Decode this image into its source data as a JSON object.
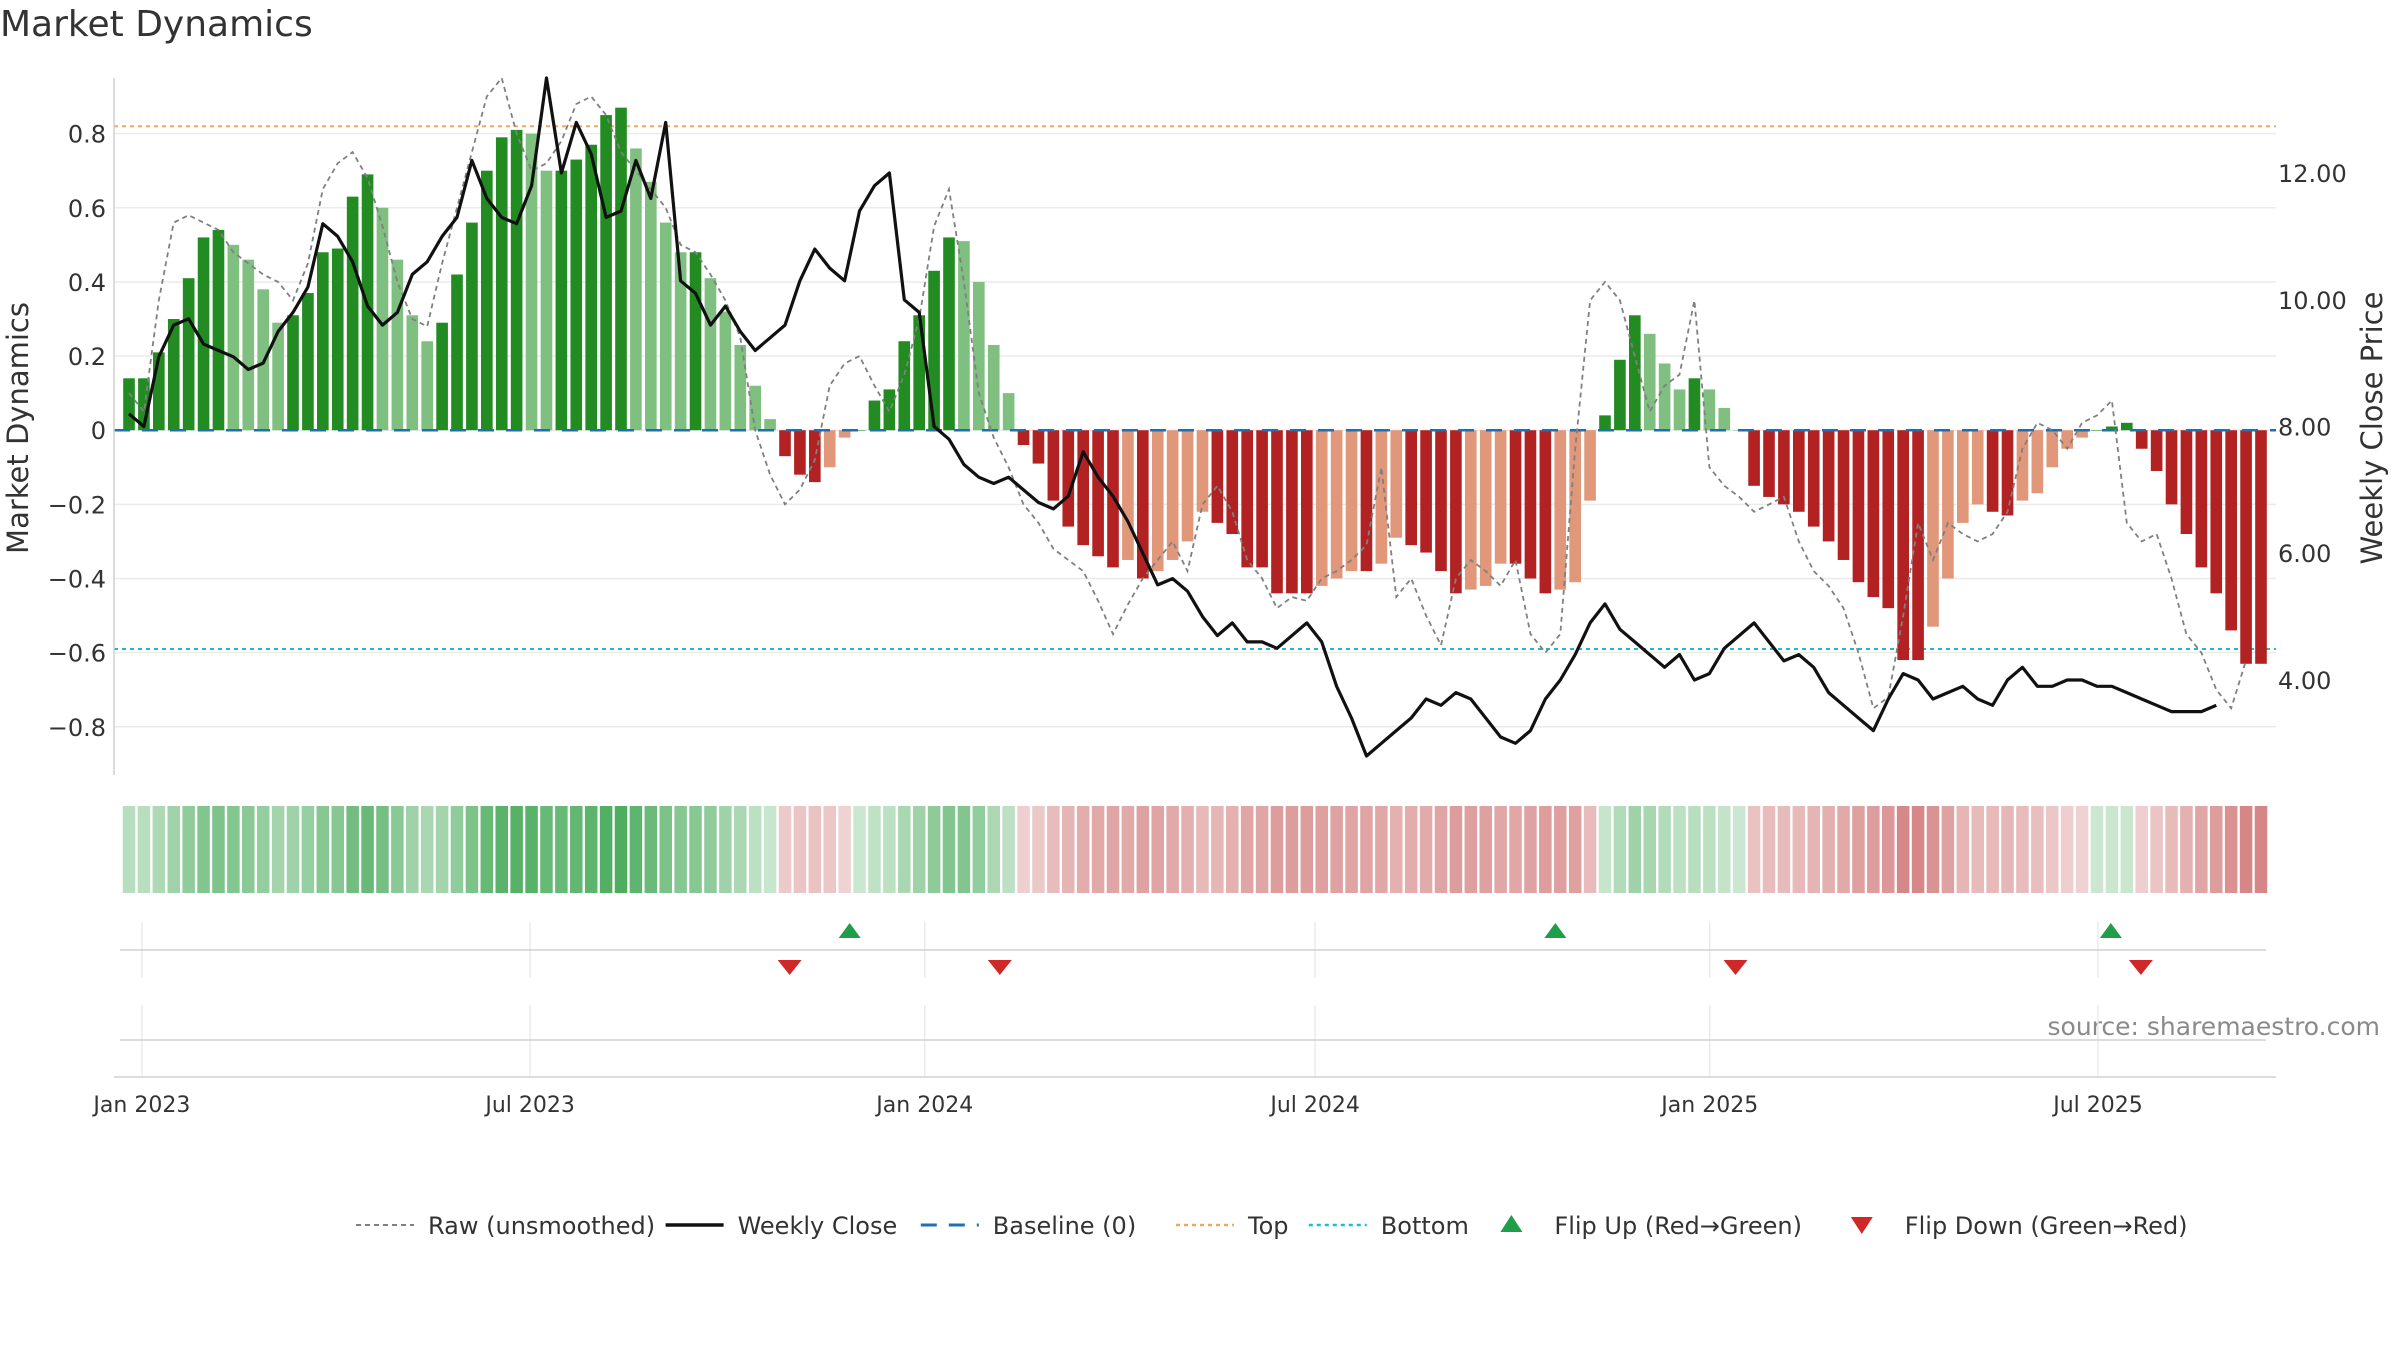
{
  "chart_data": {
    "type": "bar",
    "title": "Market Dynamics",
    "ylabel": "Market Dynamics",
    "y2label": "Weekly Close Price",
    "source": "source: sharemaestro.com",
    "ylim": [
      -0.93,
      0.95
    ],
    "y2lim": [
      2.5,
      13.5
    ],
    "yticks": [
      "0.8",
      "0.6",
      "0.4",
      "0.2",
      "0",
      "−0.2",
      "−0.4",
      "−0.6",
      "−0.8"
    ],
    "ytick_values": [
      0.8,
      0.6,
      0.4,
      0.2,
      0,
      -0.2,
      -0.4,
      -0.6,
      -0.8
    ],
    "y2ticks": [
      "12.00",
      "10.00",
      "8.00",
      "6.00",
      "4.00"
    ],
    "y2tick_values": [
      12,
      10,
      8,
      6,
      4
    ],
    "x_start": "2022-12-26",
    "x_end": "2025-09-15",
    "x_range": [
      "2022-12-19",
      "2025-09-22"
    ],
    "xticks": [
      {
        "label": "Jan 2023",
        "date": "2023-01-01"
      },
      {
        "label": "Jul 2023",
        "date": "2023-07-01"
      },
      {
        "label": "Jan 2024",
        "date": "2024-01-01"
      },
      {
        "label": "Jul 2024",
        "date": "2024-07-01"
      },
      {
        "label": "Jan 2025",
        "date": "2025-01-01"
      },
      {
        "label": "Jul 2025",
        "date": "2025-07-01"
      }
    ],
    "reference_lines": {
      "top": 0.82,
      "bottom": -0.59,
      "baseline": 0
    },
    "grid": true,
    "legend_position": "bottom",
    "legend": [
      {
        "label": "Raw (unsmoothed)",
        "kind": "raw"
      },
      {
        "label": "Weekly Close",
        "kind": "close"
      },
      {
        "label": "Baseline (0)",
        "kind": "baseline"
      },
      {
        "label": "Top",
        "kind": "top"
      },
      {
        "label": "Bottom",
        "kind": "bottom"
      },
      {
        "label": "Flip Up (Red→Green)",
        "kind": "flipup"
      },
      {
        "label": "Flip Down (Green→Red)",
        "kind": "flipdown"
      }
    ],
    "series": [
      {
        "name": "Market Dynamics",
        "kind": "bars",
        "values": [
          0.14,
          0.14,
          0.21,
          0.3,
          0.41,
          0.52,
          0.54,
          0.5,
          0.46,
          0.38,
          0.29,
          0.31,
          0.37,
          0.48,
          0.49,
          0.63,
          0.69,
          0.6,
          0.46,
          0.31,
          0.24,
          0.29,
          0.42,
          0.56,
          0.7,
          0.79,
          0.81,
          0.8,
          0.7,
          0.7,
          0.73,
          0.77,
          0.85,
          0.87,
          0.76,
          0.67,
          0.56,
          0.48,
          0.48,
          0.41,
          0.32,
          0.23,
          0.12,
          0.03,
          -0.07,
          -0.12,
          -0.14,
          -0.1,
          -0.02,
          0.0,
          0.08,
          0.11,
          0.24,
          0.31,
          0.43,
          0.52,
          0.51,
          0.4,
          0.23,
          0.1,
          -0.04,
          -0.09,
          -0.19,
          -0.26,
          -0.31,
          -0.34,
          -0.37,
          -0.35,
          -0.4,
          -0.38,
          -0.35,
          -0.3,
          -0.22,
          -0.25,
          -0.28,
          -0.37,
          -0.37,
          -0.44,
          -0.44,
          -0.44,
          -0.42,
          -0.4,
          -0.38,
          -0.38,
          -0.36,
          -0.29,
          -0.31,
          -0.33,
          -0.38,
          -0.44,
          -0.43,
          -0.42,
          -0.36,
          -0.36,
          -0.4,
          -0.44,
          -0.43,
          -0.41,
          -0.19,
          0.04,
          0.19,
          0.31,
          0.26,
          0.18,
          0.11,
          0.14,
          0.11,
          0.06,
          0.0,
          -0.15,
          -0.18,
          -0.2,
          -0.22,
          -0.26,
          -0.3,
          -0.35,
          -0.41,
          -0.45,
          -0.48,
          -0.62,
          -0.62,
          -0.53,
          -0.4,
          -0.25,
          -0.2,
          -0.22,
          -0.23,
          -0.19,
          -0.17,
          -0.1,
          -0.05,
          -0.02,
          0.0,
          0.01,
          0.02,
          -0.05,
          -0.11,
          -0.2,
          -0.28,
          -0.37,
          -0.44,
          -0.54,
          -0.63,
          -0.63
        ]
      },
      {
        "name": "Weekly Close",
        "kind": "price",
        "values": [
          8.2,
          8.0,
          9.1,
          9.6,
          9.7,
          9.3,
          9.2,
          9.1,
          8.9,
          9.0,
          9.5,
          9.8,
          10.2,
          11.2,
          11.0,
          10.6,
          9.9,
          9.6,
          9.8,
          10.4,
          10.6,
          11.0,
          11.3,
          12.2,
          11.6,
          11.3,
          11.2,
          11.8,
          13.5,
          12.0,
          12.8,
          12.3,
          11.3,
          11.4,
          12.2,
          11.6,
          12.8,
          10.3,
          10.1,
          9.6,
          9.9,
          9.5,
          9.2,
          9.4,
          9.6,
          10.3,
          10.8,
          10.5,
          10.3,
          11.4,
          11.8,
          12.0,
          10.0,
          9.8,
          8.0,
          7.8,
          7.4,
          7.2,
          7.1,
          7.2,
          7.0,
          6.8,
          6.7,
          6.9,
          7.6,
          7.2,
          6.9,
          6.5,
          6.0,
          5.5,
          5.6,
          5.4,
          5.0,
          4.7,
          4.9,
          4.6,
          4.6,
          4.5,
          4.7,
          4.9,
          4.6,
          3.9,
          3.4,
          2.8,
          3.0,
          3.2,
          3.4,
          3.7,
          3.6,
          3.8,
          3.7,
          3.4,
          3.1,
          3.0,
          3.2,
          3.7,
          4.0,
          4.4,
          4.9,
          5.2,
          4.8,
          4.6,
          4.4,
          4.2,
          4.4,
          4.0,
          4.1,
          4.5,
          4.7,
          4.9,
          4.6,
          4.3,
          4.4,
          4.2,
          3.8,
          3.6,
          3.4,
          3.2,
          3.7,
          4.1,
          4.0,
          3.7,
          3.8,
          3.9,
          3.7,
          3.6,
          4.0,
          4.2,
          3.9,
          3.9,
          4.0,
          4.0,
          3.9,
          3.9,
          3.8,
          3.7,
          3.6,
          3.5,
          3.5,
          3.5,
          3.6
        ]
      },
      {
        "name": "Raw (unsmoothed)",
        "kind": "raw",
        "values": [
          0.1,
          0.05,
          0.35,
          0.56,
          0.58,
          0.56,
          0.54,
          0.48,
          0.45,
          0.42,
          0.4,
          0.35,
          0.45,
          0.65,
          0.72,
          0.75,
          0.68,
          0.55,
          0.4,
          0.3,
          0.28,
          0.45,
          0.6,
          0.75,
          0.9,
          0.95,
          0.8,
          0.7,
          0.72,
          0.78,
          0.88,
          0.9,
          0.85,
          0.75,
          0.7,
          0.65,
          0.6,
          0.5,
          0.48,
          0.42,
          0.35,
          0.25,
          0.0,
          -0.12,
          -0.2,
          -0.16,
          -0.08,
          0.12,
          0.18,
          0.2,
          0.12,
          0.05,
          0.15,
          0.3,
          0.55,
          0.65,
          0.4,
          0.1,
          -0.02,
          -0.1,
          -0.2,
          -0.25,
          -0.32,
          -0.35,
          -0.38,
          -0.46,
          -0.55,
          -0.47,
          -0.4,
          -0.35,
          -0.3,
          -0.38,
          -0.2,
          -0.15,
          -0.22,
          -0.35,
          -0.4,
          -0.48,
          -0.45,
          -0.46,
          -0.4,
          -0.38,
          -0.35,
          -0.31,
          -0.1,
          -0.45,
          -0.4,
          -0.5,
          -0.58,
          -0.4,
          -0.35,
          -0.38,
          -0.42,
          -0.35,
          -0.55,
          -0.6,
          -0.55,
          -0.05,
          0.35,
          0.4,
          0.35,
          0.2,
          0.05,
          0.12,
          0.15,
          0.35,
          -0.1,
          -0.15,
          -0.18,
          -0.22,
          -0.2,
          -0.18,
          -0.3,
          -0.38,
          -0.42,
          -0.48,
          -0.6,
          -0.75,
          -0.72,
          -0.5,
          -0.25,
          -0.35,
          -0.25,
          -0.28,
          -0.3,
          -0.28,
          -0.22,
          -0.05,
          0.02,
          0.0,
          -0.05,
          0.02,
          0.04,
          0.08,
          -0.25,
          -0.3,
          -0.28,
          -0.4,
          -0.55,
          -0.6,
          -0.7,
          -0.75,
          -0.62
        ]
      }
    ],
    "flip_up": [
      "2023-11-27",
      "2024-10-21",
      "2025-07-07"
    ],
    "flip_down": [
      "2023-10-30",
      "2024-02-05",
      "2025-01-13",
      "2025-07-21"
    ]
  }
}
